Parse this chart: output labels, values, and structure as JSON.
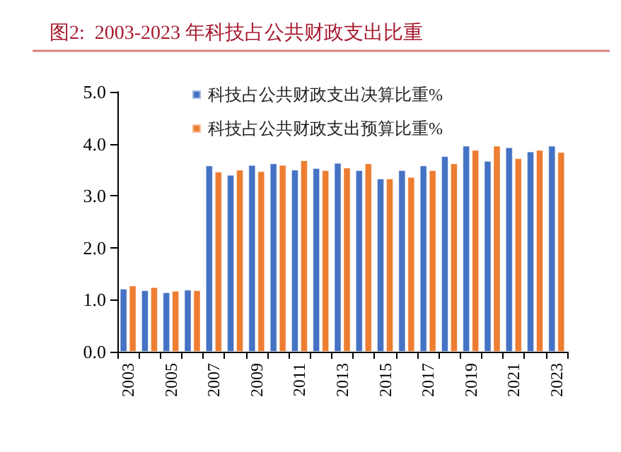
{
  "chart_data": {
    "type": "bar",
    "title": "图2:  2003-2023 年科技占公共财政支出比重",
    "categories": [
      "2003",
      null,
      "2005",
      null,
      "2007",
      null,
      "2009",
      null,
      "2011",
      null,
      "2013",
      null,
      "2015",
      null,
      "2017",
      null,
      "2019",
      null,
      "2021",
      null,
      "2023"
    ],
    "series": [
      {
        "name": "科技占公共财政支出决算比重%",
        "color": "#4472c4",
        "values": [
          1.21,
          1.18,
          1.14,
          1.19,
          3.58,
          3.4,
          3.59,
          3.62,
          3.5,
          3.53,
          3.63,
          3.49,
          3.33,
          3.49,
          3.58,
          3.76,
          3.96,
          3.67,
          3.93,
          3.85,
          3.96
        ]
      },
      {
        "name": "科技占公共财政支出预算比重%",
        "color": "#ed7d31",
        "values": [
          1.27,
          1.24,
          1.17,
          1.18,
          3.46,
          3.5,
          3.47,
          3.59,
          3.68,
          3.49,
          3.54,
          3.62,
          3.33,
          3.36,
          3.49,
          3.62,
          3.88,
          3.96,
          3.72,
          3.88,
          3.84
        ]
      }
    ],
    "ylim": [
      0,
      5
    ],
    "yticks": [
      {
        "value": 0,
        "label": "0.0"
      },
      {
        "value": 1,
        "label": "1.0"
      },
      {
        "value": 2,
        "label": "2.0"
      },
      {
        "value": 3,
        "label": "3.0"
      },
      {
        "value": 4,
        "label": "4.0"
      },
      {
        "value": 5,
        "label": "5.0"
      }
    ],
    "grid": false,
    "legend": "top"
  }
}
